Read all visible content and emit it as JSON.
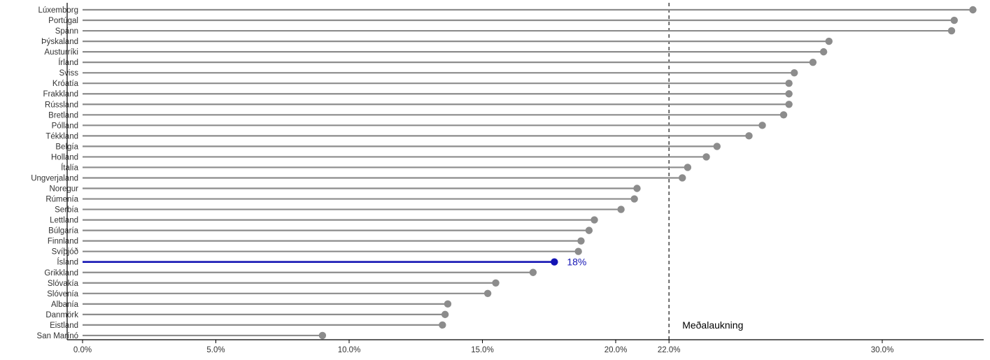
{
  "chart_data": {
    "type": "lollipop",
    "orientation": "horizontal",
    "categories": [
      "Lúxemborg",
      "Portúgal",
      "Spánn",
      "Þýskaland",
      "Austurríki",
      "Írland",
      "Sviss",
      "Króatía",
      "Frakkland",
      "Rússland",
      "Bretland",
      "Pólland",
      "Tékkland",
      "Belgía",
      "Holland",
      "Ítalía",
      "Ungverjaland",
      "Noregur",
      "Rúmenía",
      "Serbía",
      "Lettland",
      "Búlgaría",
      "Finnland",
      "Svíþjóð",
      "Ísland",
      "Grikkland",
      "Slóvakía",
      "Slóvenía",
      "Albanía",
      "Danmörk",
      "Eistland",
      "San Marínó"
    ],
    "values": [
      33.4,
      32.7,
      32.6,
      28.0,
      27.8,
      27.4,
      26.7,
      26.5,
      26.5,
      26.5,
      26.3,
      25.5,
      25.0,
      23.8,
      23.4,
      22.7,
      22.5,
      20.8,
      20.7,
      20.2,
      19.2,
      19.0,
      18.7,
      18.6,
      17.7,
      16.9,
      15.5,
      15.2,
      13.7,
      13.6,
      13.5,
      9.0
    ],
    "highlight": {
      "category": "Ísland",
      "label": "18%",
      "color": "#1414b4"
    },
    "reference_line": {
      "value": 22.0,
      "label": "Meðalaukning",
      "style": "dashed"
    },
    "x_ticks": [
      0,
      5,
      10,
      15,
      20,
      22,
      30
    ],
    "x_tick_labels": [
      "0.0%",
      "5.0%",
      "10.0%",
      "15.0%",
      "20.0%",
      "22.0%",
      "30.0%"
    ],
    "xlim": [
      0,
      34
    ],
    "colors": {
      "default": "#8c8c8c",
      "highlight": "#1414b4",
      "axis": "#000000",
      "text": "#333333"
    },
    "grid": false
  }
}
